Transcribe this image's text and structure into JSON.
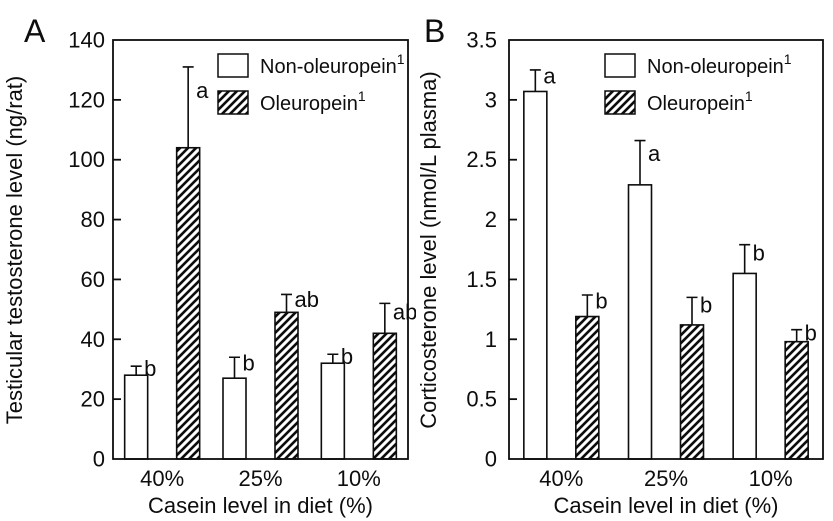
{
  "figure": {
    "description": "Two-panel bar chart comparing Non-oleuropein and Oleuropein diets at three casein levels",
    "colors": {
      "background": "#ffffff",
      "foreground": "#0d0d0d",
      "bar_fill_open": "#ffffff",
      "hatch_color": "#0d0d0d"
    }
  },
  "chart_data": [
    {
      "type": "bar",
      "panel_label": "A",
      "ylabel": "Testicular testosterone level (ng/rat)",
      "xlabel": "Casein level in diet (%)",
      "ylim": [
        0,
        140
      ],
      "yticks": [
        0,
        20,
        40,
        60,
        80,
        100,
        120,
        140
      ],
      "ytick_labels": [
        "0",
        "20",
        "40",
        "60",
        "80",
        "100",
        "120",
        "140"
      ],
      "categories": [
        "40%",
        "25%",
        "10%"
      ],
      "grid": false,
      "legend_position": "top-right-inside",
      "series": [
        {
          "name": "Non-oleuropein",
          "name_superscript": "1",
          "fill_style": "open",
          "values": [
            28,
            27,
            32
          ],
          "errors_up": [
            3,
            7,
            3
          ],
          "sig_letters": [
            "b",
            "b",
            "b"
          ]
        },
        {
          "name": "Oleuropein",
          "name_superscript": "1",
          "fill_style": "hatched",
          "values": [
            104,
            49,
            42
          ],
          "errors_up": [
            27,
            6,
            10
          ],
          "sig_letters": [
            "a",
            "ab",
            "ab"
          ]
        }
      ]
    },
    {
      "type": "bar",
      "panel_label": "B",
      "ylabel": "Corticosterone level (nmol/L plasma)",
      "xlabel": "Casein level in diet (%)",
      "ylim": [
        0,
        3.5
      ],
      "yticks": [
        0,
        0.5,
        1,
        1.5,
        2,
        2.5,
        3,
        3.5
      ],
      "ytick_labels": [
        "0",
        "0.5",
        "1",
        "1.5",
        "2",
        "2.5",
        "3",
        "3.5"
      ],
      "categories": [
        "40%",
        "25%",
        "10%"
      ],
      "grid": false,
      "legend_position": "top-right-inside",
      "series": [
        {
          "name": "Non-oleuropein",
          "name_superscript": "1",
          "fill_style": "open",
          "values": [
            3.07,
            2.29,
            1.55
          ],
          "errors_up": [
            0.18,
            0.37,
            0.24
          ],
          "sig_letters": [
            "a",
            "a",
            "b"
          ]
        },
        {
          "name": "Oleuropein",
          "name_superscript": "1",
          "fill_style": "hatched",
          "values": [
            1.19,
            1.12,
            0.98
          ],
          "errors_up": [
            0.18,
            0.23,
            0.1
          ],
          "sig_letters": [
            "b",
            "b",
            "b"
          ]
        }
      ]
    }
  ]
}
